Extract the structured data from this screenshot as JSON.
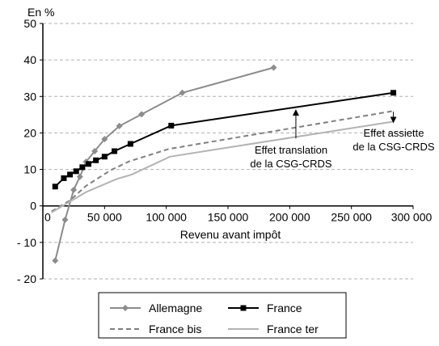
{
  "chart_data": {
    "type": "line",
    "ylabel": "En %",
    "xlabel": "Revenu avant impôt",
    "xlim": [
      0,
      300000
    ],
    "ylim": [
      -20,
      50
    ],
    "x_ticks": [
      0,
      50000,
      100000,
      150000,
      200000,
      250000,
      300000
    ],
    "x_tick_labels": [
      "0",
      "50 000",
      "100 000",
      "150 000",
      "200 000",
      "250 000",
      "300 000"
    ],
    "y_ticks": [
      -20,
      -10,
      0,
      10,
      20,
      30,
      40,
      50
    ],
    "y_tick_labels": [
      "- 20",
      "- 10",
      "0",
      "10",
      "20",
      "30",
      "40",
      "50"
    ],
    "grid": "horizontal dashed",
    "legend_position": "bottom",
    "series": [
      {
        "name": "Allemagne",
        "color": "#8c8c8c",
        "line_style": "solid",
        "marker": "diamond",
        "x": [
          10000,
          18000,
          25000,
          30000,
          35000,
          42000,
          50000,
          62000,
          80000,
          113000,
          187000
        ],
        "y": [
          -15,
          -3.8,
          4.4,
          8,
          12.1,
          15,
          18.3,
          21.9,
          25.1,
          31,
          37.9
        ]
      },
      {
        "name": "France",
        "color": "#000000",
        "line_style": "solid",
        "marker": "square",
        "x": [
          10000,
          17000,
          22000,
          27000,
          32000,
          37000,
          43000,
          50000,
          58000,
          71000,
          104000,
          284000
        ],
        "y": [
          5.3,
          7.6,
          8.6,
          9.5,
          10.6,
          11.5,
          12.5,
          13.5,
          15,
          17,
          22,
          31
        ]
      },
      {
        "name": "France bis",
        "color": "#808080",
        "line_style": "dashed",
        "marker": "none",
        "x": [
          7000,
          22000,
          35000,
          55000,
          70000,
          102000,
          284000
        ],
        "y": [
          -1.5,
          1.5,
          5.5,
          9.8,
          12.2,
          15.6,
          26
        ]
      },
      {
        "name": "France ter",
        "color": "#b3b3b3",
        "line_style": "solid",
        "marker": "none",
        "x": [
          7000,
          22000,
          35000,
          60000,
          72000,
          103000,
          284000
        ],
        "y": [
          -1.8,
          1.2,
          3.8,
          7.4,
          8.6,
          13.5,
          23.1
        ]
      }
    ],
    "annotations": [
      {
        "lines": [
          "Effet translation",
          "de la CSG-CRDS"
        ],
        "arrow_x": 205000,
        "arrow_from": 18.5,
        "arrow_to": 26.5
      },
      {
        "lines": [
          "Effet assiette",
          "de la CSG-CRDS"
        ],
        "arrow_x": 284000,
        "arrow_from": 25.8,
        "arrow_to": 22.9
      }
    ]
  }
}
